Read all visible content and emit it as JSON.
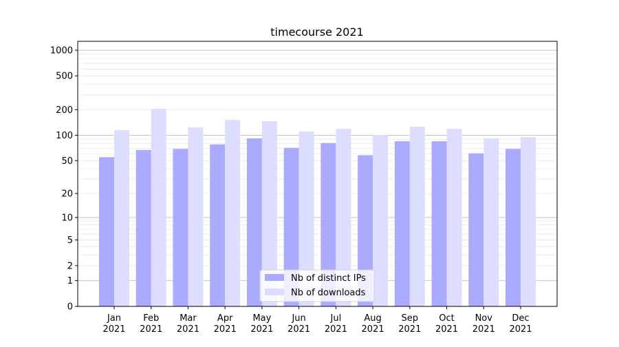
{
  "chart_data": {
    "type": "bar",
    "title": "timecourse 2021",
    "xlabel": "",
    "ylabel": "",
    "yscale": "log(1+y)",
    "ylim": [
      0,
      1300
    ],
    "yticks": [
      0,
      1,
      2,
      5,
      10,
      20,
      50,
      100,
      200,
      500,
      1000
    ],
    "ytick_labels": [
      "0",
      "1",
      "2",
      "5",
      "10",
      "20",
      "50",
      "100",
      "200",
      "500",
      "1000"
    ],
    "grid": true,
    "legend_position": "bottom-center",
    "categories": [
      "Jan\n2021",
      "Feb\n2021",
      "Mar\n2021",
      "Apr\n2021",
      "May\n2021",
      "Jun\n2021",
      "Jul\n2021",
      "Aug\n2021",
      "Sep\n2021",
      "Oct\n2021",
      "Nov\n2021",
      "Dec\n2021"
    ],
    "series": [
      {
        "name": "Nb of distinct IPs",
        "color": "#aaaaff",
        "values": [
          55,
          67,
          69,
          78,
          92,
          71,
          81,
          58,
          85,
          85,
          61,
          69
        ]
      },
      {
        "name": "Nb of downloads",
        "color": "#ddddff",
        "values": [
          115,
          205,
          124,
          152,
          147,
          111,
          119,
          101,
          126,
          119,
          92,
          95
        ]
      }
    ]
  }
}
